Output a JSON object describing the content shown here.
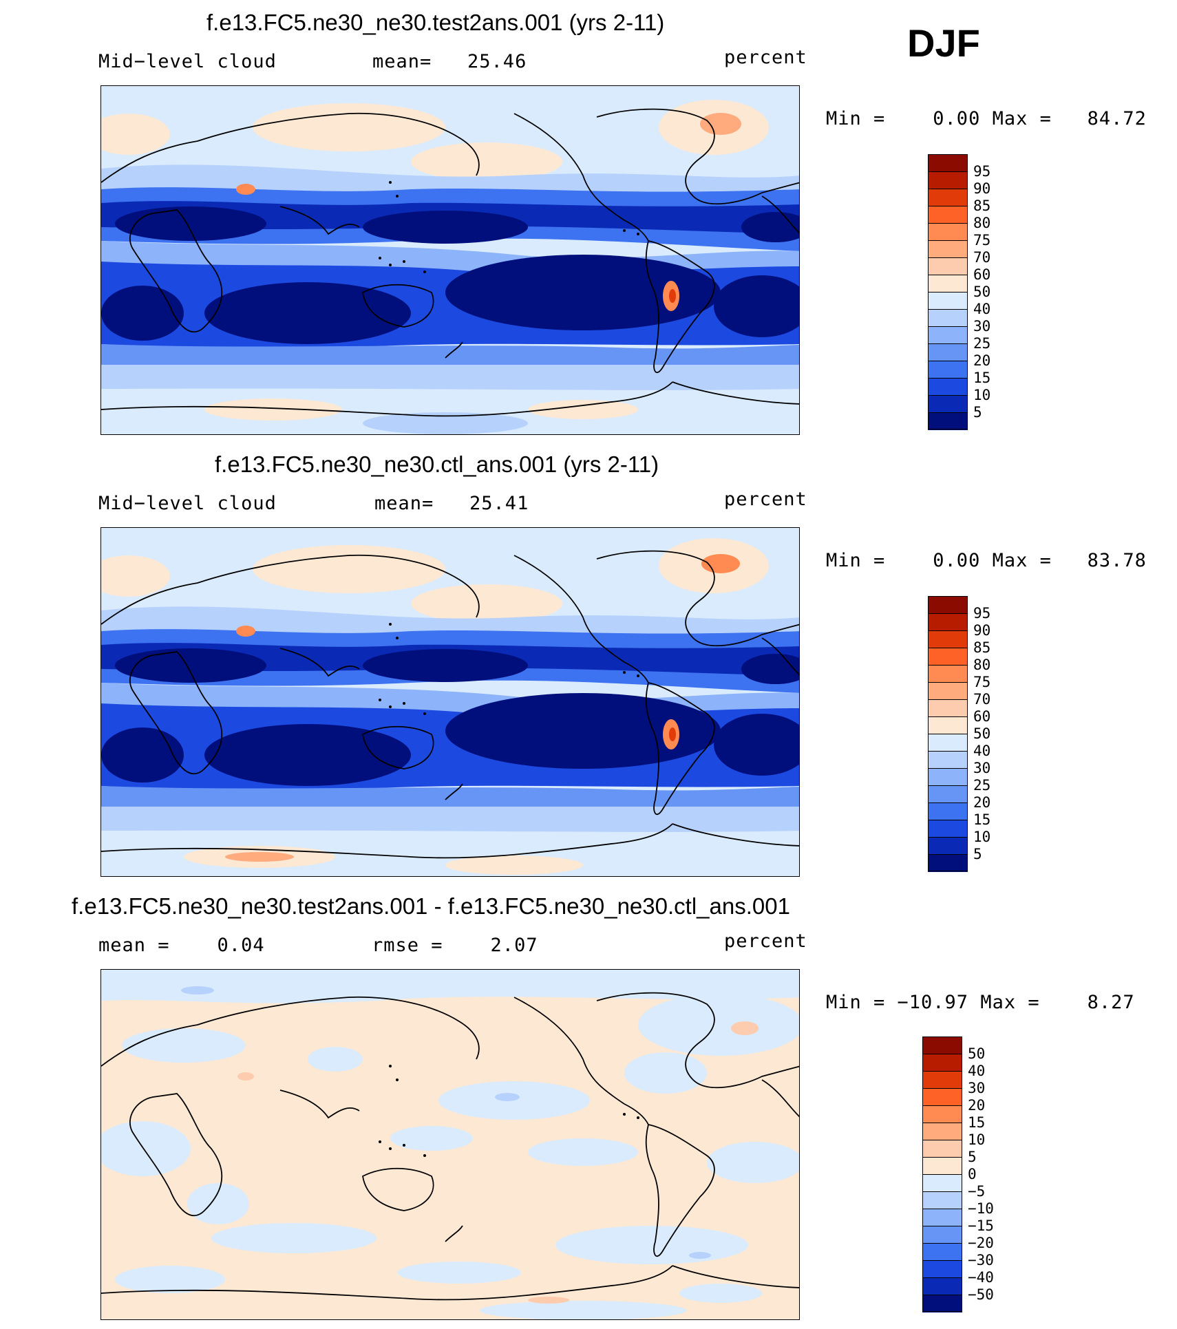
{
  "season": "DJF",
  "panels": [
    {
      "title": "f.e13.FC5.ne30_ne30.test2ans.001 (yrs 2-11)",
      "left_label": "Mid−level cloud",
      "center_label": "mean=   25.46",
      "units": "percent",
      "minmax": "Min =    0.00 Max =   84.72"
    },
    {
      "title": "f.e13.FC5.ne30_ne30.ctl_ans.001 (yrs 2-11)",
      "left_label": "Mid−level cloud",
      "center_label": "mean=   25.41",
      "units": "percent",
      "minmax": "Min =    0.00 Max =   83.78"
    },
    {
      "title": "f.e13.FC5.ne30_ne30.test2ans.001 - f.e13.FC5.ne30_ne30.ctl_ans.001",
      "left_label": "mean =    0.04",
      "center_label": "rmse =    2.07",
      "units": "percent",
      "minmax": "Min = −10.97 Max =    8.27"
    }
  ],
  "colorbars": {
    "field": {
      "labels": [
        "95",
        "90",
        "85",
        "80",
        "75",
        "70",
        "60",
        "50",
        "40",
        "30",
        "25",
        "20",
        "15",
        "10",
        "5"
      ],
      "colors": [
        "#8b0b00",
        "#b81c00",
        "#e23b0a",
        "#ff6226",
        "#ff8a52",
        "#ffab7e",
        "#fdcbae",
        "#fde8d4",
        "#d9ebfc",
        "#b6d1fb",
        "#8db3fa",
        "#6795f6",
        "#3d72f0",
        "#1c49e0",
        "#0a2ab6",
        "#000f7c"
      ]
    },
    "diff": {
      "labels": [
        "50",
        "40",
        "30",
        "20",
        "15",
        "10",
        "5",
        "0",
        "−5",
        "−10",
        "−15",
        "−20",
        "−30",
        "−40",
        "−50"
      ],
      "colors": [
        "#8b0b00",
        "#b81c00",
        "#e23b0a",
        "#ff6226",
        "#ff8a52",
        "#ffab7e",
        "#fdcbae",
        "#fde8d4",
        "#d9ebfc",
        "#b6d1fb",
        "#8db3fa",
        "#6795f6",
        "#3d72f0",
        "#1c49e0",
        "#0a2ab6",
        "#000f7c"
      ]
    }
  }
}
